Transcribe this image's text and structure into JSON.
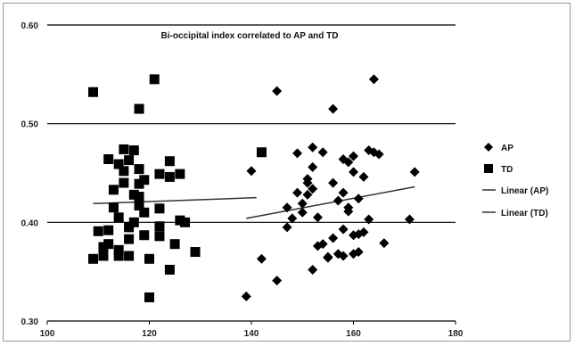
{
  "chart_data": {
    "type": "scatter",
    "title": "Bi-occipital index correlated to  AP and TD",
    "xlabel": "",
    "ylabel": "",
    "xlim": [
      100,
      180
    ],
    "ylim": [
      0.3,
      0.6
    ],
    "x_ticks": [
      "100",
      "120",
      "140",
      "160",
      "180"
    ],
    "y_ticks": [
      "0.30",
      "0.40",
      "0.50",
      "0.60"
    ],
    "grid": "horizontal",
    "legend_position": "right",
    "series": [
      {
        "name": "AP",
        "marker": "diamond",
        "points": [
          [
            139,
            0.325
          ],
          [
            140,
            0.452
          ],
          [
            142,
            0.363
          ],
          [
            145,
            0.533
          ],
          [
            145,
            0.341
          ],
          [
            147,
            0.395
          ],
          [
            147,
            0.415
          ],
          [
            148,
            0.404
          ],
          [
            149,
            0.43
          ],
          [
            149,
            0.47
          ],
          [
            150,
            0.41
          ],
          [
            150,
            0.419
          ],
          [
            151,
            0.428
          ],
          [
            151,
            0.44
          ],
          [
            151,
            0.444
          ],
          [
            152,
            0.352
          ],
          [
            152,
            0.434
          ],
          [
            152,
            0.456
          ],
          [
            152,
            0.476
          ],
          [
            153,
            0.405
          ],
          [
            153,
            0.376
          ],
          [
            154,
            0.378
          ],
          [
            154,
            0.471
          ],
          [
            155,
            0.365
          ],
          [
            155,
            0.364
          ],
          [
            156,
            0.384
          ],
          [
            156,
            0.44
          ],
          [
            156,
            0.515
          ],
          [
            157,
            0.368
          ],
          [
            157,
            0.422
          ],
          [
            158,
            0.366
          ],
          [
            158,
            0.393
          ],
          [
            158,
            0.43
          ],
          [
            158,
            0.464
          ],
          [
            159,
            0.415
          ],
          [
            159,
            0.411
          ],
          [
            159,
            0.461
          ],
          [
            160,
            0.368
          ],
          [
            160,
            0.387
          ],
          [
            160,
            0.451
          ],
          [
            160,
            0.467
          ],
          [
            161,
            0.37
          ],
          [
            161,
            0.388
          ],
          [
            161,
            0.424
          ],
          [
            162,
            0.39
          ],
          [
            162,
            0.446
          ],
          [
            163,
            0.403
          ],
          [
            163,
            0.473
          ],
          [
            164,
            0.545
          ],
          [
            164,
            0.471
          ],
          [
            165,
            0.469
          ],
          [
            166,
            0.379
          ],
          [
            171,
            0.403
          ],
          [
            172,
            0.451
          ]
        ],
        "trendline": {
          "name": "Linear (AP)",
          "from": [
            139,
            0.404
          ],
          "to": [
            172,
            0.436
          ]
        }
      },
      {
        "name": "TD",
        "marker": "square",
        "points": [
          [
            109,
            0.532
          ],
          [
            109,
            0.363
          ],
          [
            110,
            0.391
          ],
          [
            111,
            0.366
          ],
          [
            111,
            0.375
          ],
          [
            112,
            0.464
          ],
          [
            112,
            0.392
          ],
          [
            112,
            0.378
          ],
          [
            113,
            0.433
          ],
          [
            113,
            0.415
          ],
          [
            114,
            0.372
          ],
          [
            114,
            0.366
          ],
          [
            114,
            0.405
          ],
          [
            114,
            0.459
          ],
          [
            115,
            0.474
          ],
          [
            115,
            0.44
          ],
          [
            115,
            0.452
          ],
          [
            116,
            0.395
          ],
          [
            116,
            0.383
          ],
          [
            116,
            0.463
          ],
          [
            116,
            0.366
          ],
          [
            117,
            0.473
          ],
          [
            117,
            0.428
          ],
          [
            117,
            0.4
          ],
          [
            118,
            0.515
          ],
          [
            118,
            0.454
          ],
          [
            118,
            0.439
          ],
          [
            118,
            0.426
          ],
          [
            118,
            0.417
          ],
          [
            119,
            0.443
          ],
          [
            119,
            0.41
          ],
          [
            119,
            0.387
          ],
          [
            120,
            0.324
          ],
          [
            120,
            0.363
          ],
          [
            121,
            0.545
          ],
          [
            122,
            0.449
          ],
          [
            122,
            0.414
          ],
          [
            122,
            0.396
          ],
          [
            122,
            0.386
          ],
          [
            124,
            0.462
          ],
          [
            124,
            0.446
          ],
          [
            124,
            0.352
          ],
          [
            125,
            0.378
          ],
          [
            126,
            0.402
          ],
          [
            126,
            0.449
          ],
          [
            127,
            0.4
          ],
          [
            129,
            0.37
          ],
          [
            142,
            0.471
          ]
        ],
        "trendline": {
          "name": "Linear (TD)",
          "from": [
            109,
            0.419
          ],
          "to": [
            141,
            0.425
          ]
        }
      }
    ],
    "legend": [
      "AP",
      "TD",
      "Linear (AP)",
      "Linear (TD)"
    ]
  }
}
